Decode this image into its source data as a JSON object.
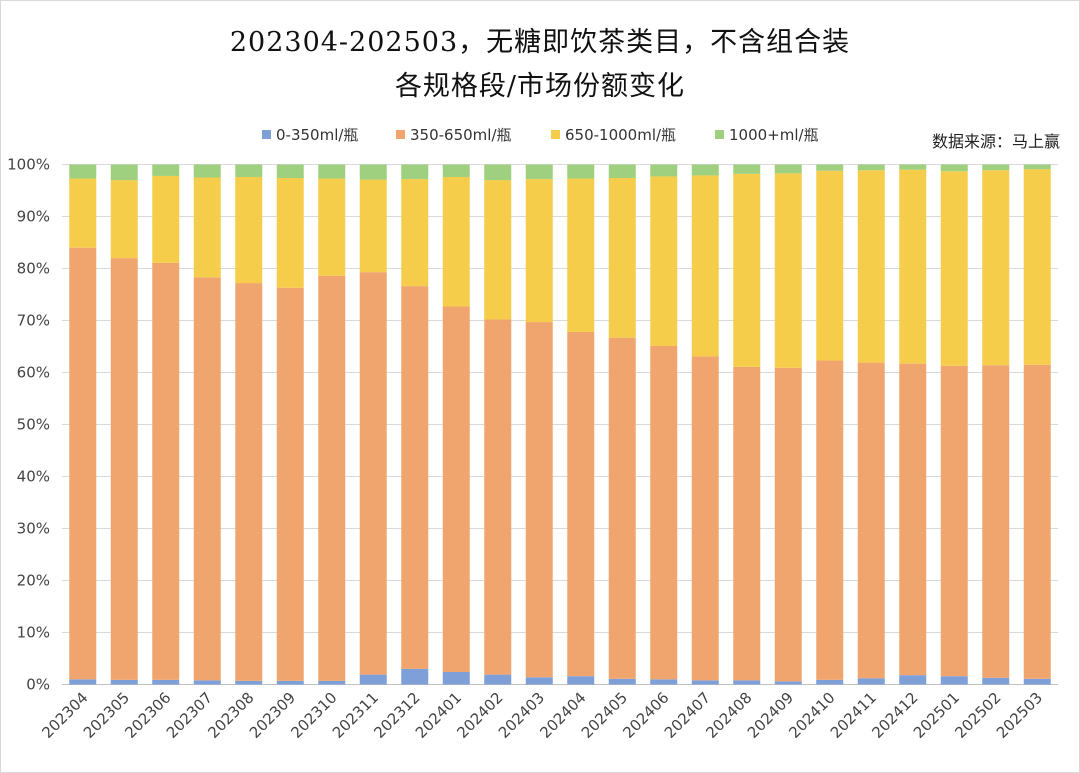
{
  "title_line1": "202304-202503，无糖即饮茶类目，不含组合装",
  "title_line2": "各规格段/市场份额变化",
  "source": "数据来源：马上赢",
  "chart_data": {
    "type": "bar",
    "stacked": true,
    "percent_stacked": true,
    "categories": [
      "202304",
      "202305",
      "202306",
      "202307",
      "202308",
      "202309",
      "202310",
      "202311",
      "202312",
      "202401",
      "202402",
      "202403",
      "202404",
      "202405",
      "202406",
      "202407",
      "202408",
      "202409",
      "202410",
      "202411",
      "202412",
      "202501",
      "202502",
      "202503"
    ],
    "series": [
      {
        "name": "0-350ml/瓶",
        "color": "#7f9fd8",
        "values": [
          1.0,
          0.9,
          0.9,
          0.8,
          0.7,
          0.7,
          0.7,
          1.9,
          3.0,
          2.4,
          1.9,
          1.4,
          1.6,
          1.1,
          1.0,
          0.8,
          0.8,
          0.6,
          0.9,
          1.2,
          1.8,
          1.6,
          1.3,
          1.1
        ]
      },
      {
        "name": "350-650ml/瓶",
        "color": "#f0a56e",
        "values": [
          83.0,
          81.1,
          80.2,
          77.5,
          76.5,
          75.6,
          77.9,
          77.4,
          73.6,
          70.3,
          68.3,
          68.3,
          66.2,
          65.6,
          64.1,
          62.3,
          60.3,
          60.3,
          61.4,
          60.7,
          59.9,
          59.7,
          60.1,
          60.4
        ]
      },
      {
        "name": "650-1000ml/瓶",
        "color": "#f5cd4a",
        "values": [
          13.3,
          15.0,
          16.7,
          19.2,
          20.4,
          21.1,
          18.7,
          17.8,
          20.6,
          24.9,
          26.8,
          27.5,
          29.5,
          30.7,
          32.6,
          34.8,
          37.1,
          37.4,
          36.5,
          37.0,
          37.3,
          37.4,
          37.5,
          37.6
        ]
      },
      {
        "name": "1000+ml/瓶",
        "color": "#9fd07f",
        "values": [
          2.7,
          3.0,
          2.2,
          2.5,
          2.4,
          2.6,
          2.7,
          2.9,
          2.8,
          2.4,
          3.0,
          2.8,
          2.7,
          2.6,
          2.3,
          2.1,
          1.8,
          1.7,
          1.2,
          1.1,
          1.0,
          1.3,
          1.1,
          0.9
        ]
      }
    ],
    "y_ticks": [
      "0%",
      "10%",
      "20%",
      "30%",
      "40%",
      "50%",
      "60%",
      "70%",
      "80%",
      "90%",
      "100%"
    ],
    "ylim": [
      0,
      100
    ],
    "grid": true,
    "legend_position": "top"
  }
}
